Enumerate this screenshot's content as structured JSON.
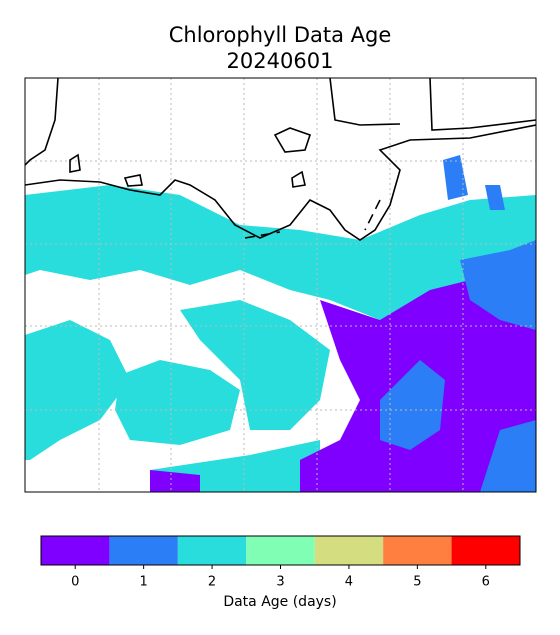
{
  "title": "Chlorophyll Data Age",
  "subtitle": "20240601",
  "colorbar": {
    "label": "Data Age (days)",
    "ticks": [
      0,
      1,
      2,
      3,
      4,
      5,
      6
    ],
    "colors": [
      "#7f00ff",
      "#2c7ef7",
      "#2adddd",
      "#80ffb4",
      "#d4dd80",
      "#ff7f40",
      "#ff0000"
    ]
  }
}
